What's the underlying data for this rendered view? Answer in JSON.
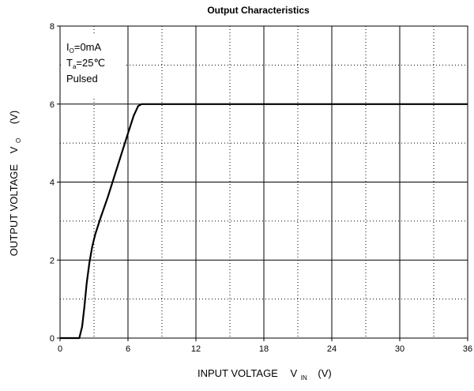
{
  "chart_data": {
    "type": "line",
    "title": "Output  Characteristics",
    "xlabel": {
      "text": "INPUT VOLTAGE",
      "symbol": "V",
      "sub": "IN",
      "unit": "(V)"
    },
    "ylabel": {
      "text": "OUTPUT VOLTAGE",
      "symbol": "V",
      "sub": "O",
      "unit": "(V)"
    },
    "xlim": [
      0,
      36
    ],
    "ylim": [
      0,
      8
    ],
    "xticks": [
      0,
      6,
      12,
      18,
      24,
      30,
      36
    ],
    "yticks": [
      0,
      2,
      4,
      6,
      8
    ],
    "x_tick_labels": [
      "0",
      "6",
      "12",
      "18",
      "24",
      "30",
      "36"
    ],
    "y_tick_labels": [
      "0",
      "2",
      "4",
      "6",
      "8"
    ],
    "grid": {
      "major": "solid",
      "minor": "dotted",
      "x_minor_step": 3,
      "y_minor_step": 1
    },
    "annotations": [
      {
        "parts": [
          {
            "t": "I"
          },
          {
            "t": "O",
            "sub": true
          },
          {
            "t": "=0mA"
          }
        ]
      },
      {
        "parts": [
          {
            "t": "T"
          },
          {
            "t": "a",
            "sub": true
          },
          {
            "t": "=25℃"
          }
        ]
      },
      {
        "parts": [
          {
            "t": "Pulsed"
          }
        ]
      }
    ],
    "series": [
      {
        "x": [
          0,
          1.7,
          1.95,
          2.15,
          2.35,
          2.6,
          2.85,
          3.1,
          3.6,
          4.2,
          4.8,
          5.4,
          6.0,
          6.5,
          6.9,
          7.2,
          7.6,
          10,
          20,
          30,
          36
        ],
        "y": [
          0,
          0,
          0.3,
          0.8,
          1.4,
          1.95,
          2.35,
          2.65,
          3.1,
          3.6,
          4.15,
          4.7,
          5.25,
          5.7,
          5.95,
          6.0,
          6.0,
          6.0,
          6.0,
          6.0,
          6.0
        ]
      }
    ]
  }
}
